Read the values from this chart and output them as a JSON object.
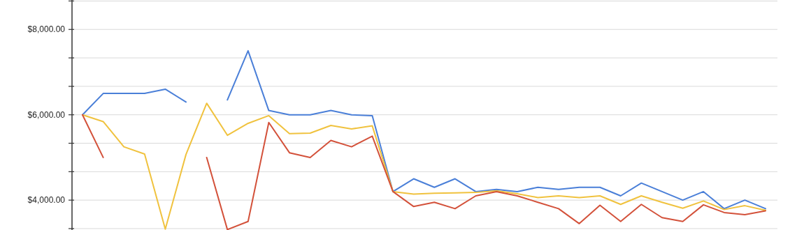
{
  "chart_data": {
    "type": "line",
    "categories": [
      null,
      null,
      null,
      null,
      null,
      null,
      null,
      null,
      null,
      null,
      null,
      null,
      null,
      null,
      null,
      null,
      null,
      null,
      null,
      null,
      null,
      null,
      null,
      null,
      null,
      null,
      null,
      null,
      null,
      null,
      null,
      null,
      null,
      null
    ],
    "series": [
      {
        "color": "#4a7fd8",
        "values": [
          6000,
          6500,
          6500,
          6500,
          6600,
          6300,
          null,
          6350,
          7500,
          6100,
          6000,
          6000,
          6100,
          6000,
          5980,
          4200,
          4500,
          4300,
          4500,
          4200,
          4250,
          4200,
          4300,
          4250,
          4300,
          4300,
          4100,
          4400,
          4200,
          4000,
          4200,
          3800,
          4000,
          3800
        ]
      },
      {
        "color": "#f0c23e",
        "values": [
          6000,
          5840,
          5250,
          5080,
          3320,
          5070,
          6270,
          5520,
          5800,
          5980,
          5560,
          5570,
          5750,
          5670,
          5740,
          4200,
          4140,
          4160,
          4170,
          4180,
          4220,
          4150,
          4060,
          4100,
          4060,
          4100,
          3900,
          4100,
          3950,
          3810,
          3980,
          3780,
          3870,
          3760
        ]
      },
      {
        "color": "#d3513a",
        "values": [
          6000,
          5000,
          null,
          null,
          null,
          null,
          5000,
          3310,
          3500,
          5820,
          5110,
          5000,
          5400,
          5250,
          5500,
          4200,
          3850,
          3950,
          3800,
          4100,
          4200,
          4100,
          3950,
          3800,
          3450,
          3880,
          3500,
          3900,
          3590,
          3500,
          3890,
          3710,
          3660,
          3750
        ]
      }
    ],
    "ylim": [
      3300,
      8690
    ],
    "yticks": [
      {
        "value": 3333.33,
        "label": null
      },
      {
        "value": 4000,
        "label": "$4,000.00"
      },
      {
        "value": 4666.67,
        "label": null
      },
      {
        "value": 5333.33,
        "label": null
      },
      {
        "value": 6000,
        "label": "$6,000.00"
      },
      {
        "value": 6666.67,
        "label": null
      },
      {
        "value": 7333.33,
        "label": null
      },
      {
        "value": 8000,
        "label": "$8,000.00"
      },
      {
        "value": 8666.67,
        "label": null
      }
    ],
    "grid": "y",
    "tick_labels": "y"
  }
}
